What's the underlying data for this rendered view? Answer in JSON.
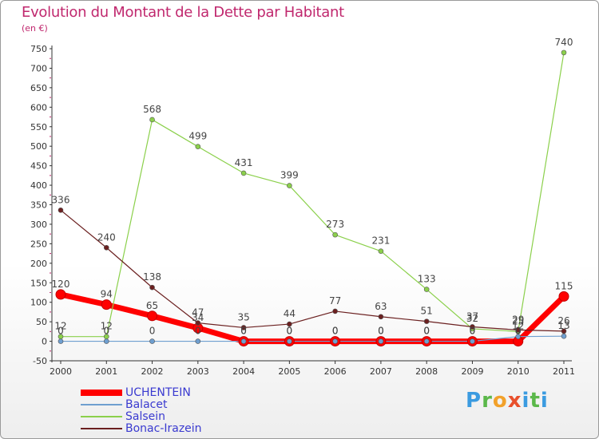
{
  "chart_data": {
    "type": "line",
    "title": "Evolution du Montant de la Dette par Habitant",
    "subtitle": "(en €)",
    "xlabel": "",
    "ylabel": "",
    "x": [
      "2000",
      "2001",
      "2002",
      "2003",
      "2004",
      "2005",
      "2006",
      "2007",
      "2008",
      "2009",
      "2010",
      "2011"
    ],
    "ylim": [
      -50,
      750
    ],
    "yticks": [
      -50,
      0,
      50,
      100,
      150,
      200,
      250,
      300,
      350,
      400,
      450,
      500,
      550,
      600,
      650,
      700,
      750
    ],
    "grid": false,
    "legend_position": "bottom-left",
    "series": [
      {
        "name": "UCHENTEIN",
        "color": "#ff0000",
        "values": [
          120,
          94,
          65,
          34,
          0,
          0,
          0,
          0,
          0,
          0,
          0,
          115
        ],
        "labels": [
          "120",
          "94",
          "65",
          "34",
          "0",
          "0",
          "0",
          "0",
          "0",
          "0",
          "0",
          "115"
        ]
      },
      {
        "name": "Balacet",
        "color": "#6f9fd0",
        "values": [
          0,
          0,
          0,
          0,
          0,
          0,
          0,
          0,
          0,
          0,
          12,
          13
        ],
        "labels": [
          "0",
          "0",
          "0",
          "0",
          "0",
          "0",
          "0",
          "0",
          "0",
          "0",
          "12",
          "13"
        ]
      },
      {
        "name": "Salsein",
        "color": "#8bd04b",
        "values": [
          12,
          12,
          568,
          499,
          431,
          399,
          273,
          231,
          133,
          32,
          25,
          740
        ],
        "labels": [
          "12",
          "12",
          "568",
          "499",
          "431",
          "399",
          "273",
          "231",
          "133",
          "32",
          "25",
          "740"
        ]
      },
      {
        "name": "Bonac-Irazein",
        "color": "#6b2020",
        "values": [
          336,
          240,
          138,
          47,
          35,
          44,
          77,
          63,
          51,
          37,
          29,
          26
        ],
        "labels": [
          "336",
          "240",
          "138",
          "47",
          "35",
          "44",
          "77",
          "63",
          "51",
          "37",
          "29",
          "26"
        ]
      }
    ]
  },
  "logo": {
    "letters": [
      "P",
      "r",
      "o",
      "x",
      "i",
      "t",
      "i"
    ]
  }
}
